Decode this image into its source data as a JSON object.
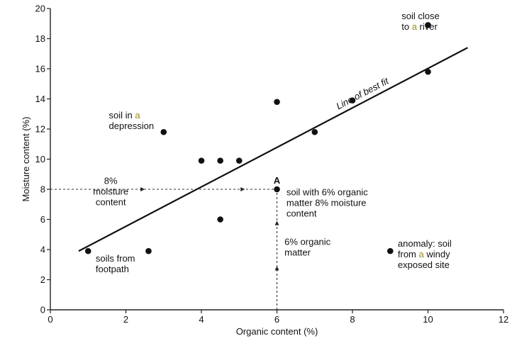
{
  "chart_data": {
    "type": "scatter",
    "xlabel": "Organic content (%)",
    "ylabel": "Moisture content (%)",
    "xlim": [
      0,
      12
    ],
    "ylim": [
      0,
      20
    ],
    "x_ticks": [
      0,
      2,
      4,
      6,
      8,
      10,
      12
    ],
    "y_ticks": [
      0,
      2,
      4,
      6,
      8,
      10,
      12,
      14,
      16,
      18,
      20
    ],
    "grid": false,
    "points": [
      {
        "x": 1.0,
        "y": 3.9
      },
      {
        "x": 2.6,
        "y": 3.9
      },
      {
        "x": 3.0,
        "y": 11.8
      },
      {
        "x": 4.0,
        "y": 9.9
      },
      {
        "x": 4.5,
        "y": 9.9
      },
      {
        "x": 4.5,
        "y": 6.0
      },
      {
        "x": 5.0,
        "y": 9.9
      },
      {
        "x": 6.0,
        "y": 13.8
      },
      {
        "x": 6.0,
        "y": 8.0
      },
      {
        "x": 7.0,
        "y": 11.8
      },
      {
        "x": 8.0,
        "y": 13.9
      },
      {
        "x": 9.0,
        "y": 3.9
      },
      {
        "x": 10.0,
        "y": 18.9
      },
      {
        "x": 10.0,
        "y": 15.8
      }
    ],
    "line_of_best_fit": {
      "label": "Line of best fit",
      "start": {
        "x": 0.75,
        "y": 3.9
      },
      "end": {
        "x": 11.05,
        "y": 17.4
      }
    },
    "point_label": {
      "text": "A",
      "x": 6.0,
      "y": 8.0
    },
    "annotations": [
      {
        "id": "soil-close-river",
        "lines": [
          "soil close",
          "to a river"
        ],
        "x": 9.3,
        "y": 19.3
      },
      {
        "id": "soil-depression",
        "lines": [
          "soil in a",
          "depression"
        ],
        "x": 1.55,
        "y": 12.7
      },
      {
        "id": "moisture-8",
        "lines": [
          "8%",
          "moisture",
          "content"
        ],
        "x": 1.6,
        "y": 8.35,
        "anchor": "middle"
      },
      {
        "id": "soil-6-organic",
        "lines": [
          "soil with 6% organic",
          "matter 8% moisture",
          "content"
        ],
        "x": 6.25,
        "y": 7.6
      },
      {
        "id": "organic-6",
        "lines": [
          "6% organic",
          "matter"
        ],
        "x": 6.2,
        "y": 4.3
      },
      {
        "id": "soils-footpath",
        "lines": [
          "soils from",
          "footpath"
        ],
        "x": 1.2,
        "y": 3.2
      },
      {
        "id": "anomaly",
        "lines": [
          "anomaly: soil",
          "from a windy",
          "exposed site"
        ],
        "x": 9.2,
        "y": 4.2
      }
    ]
  }
}
